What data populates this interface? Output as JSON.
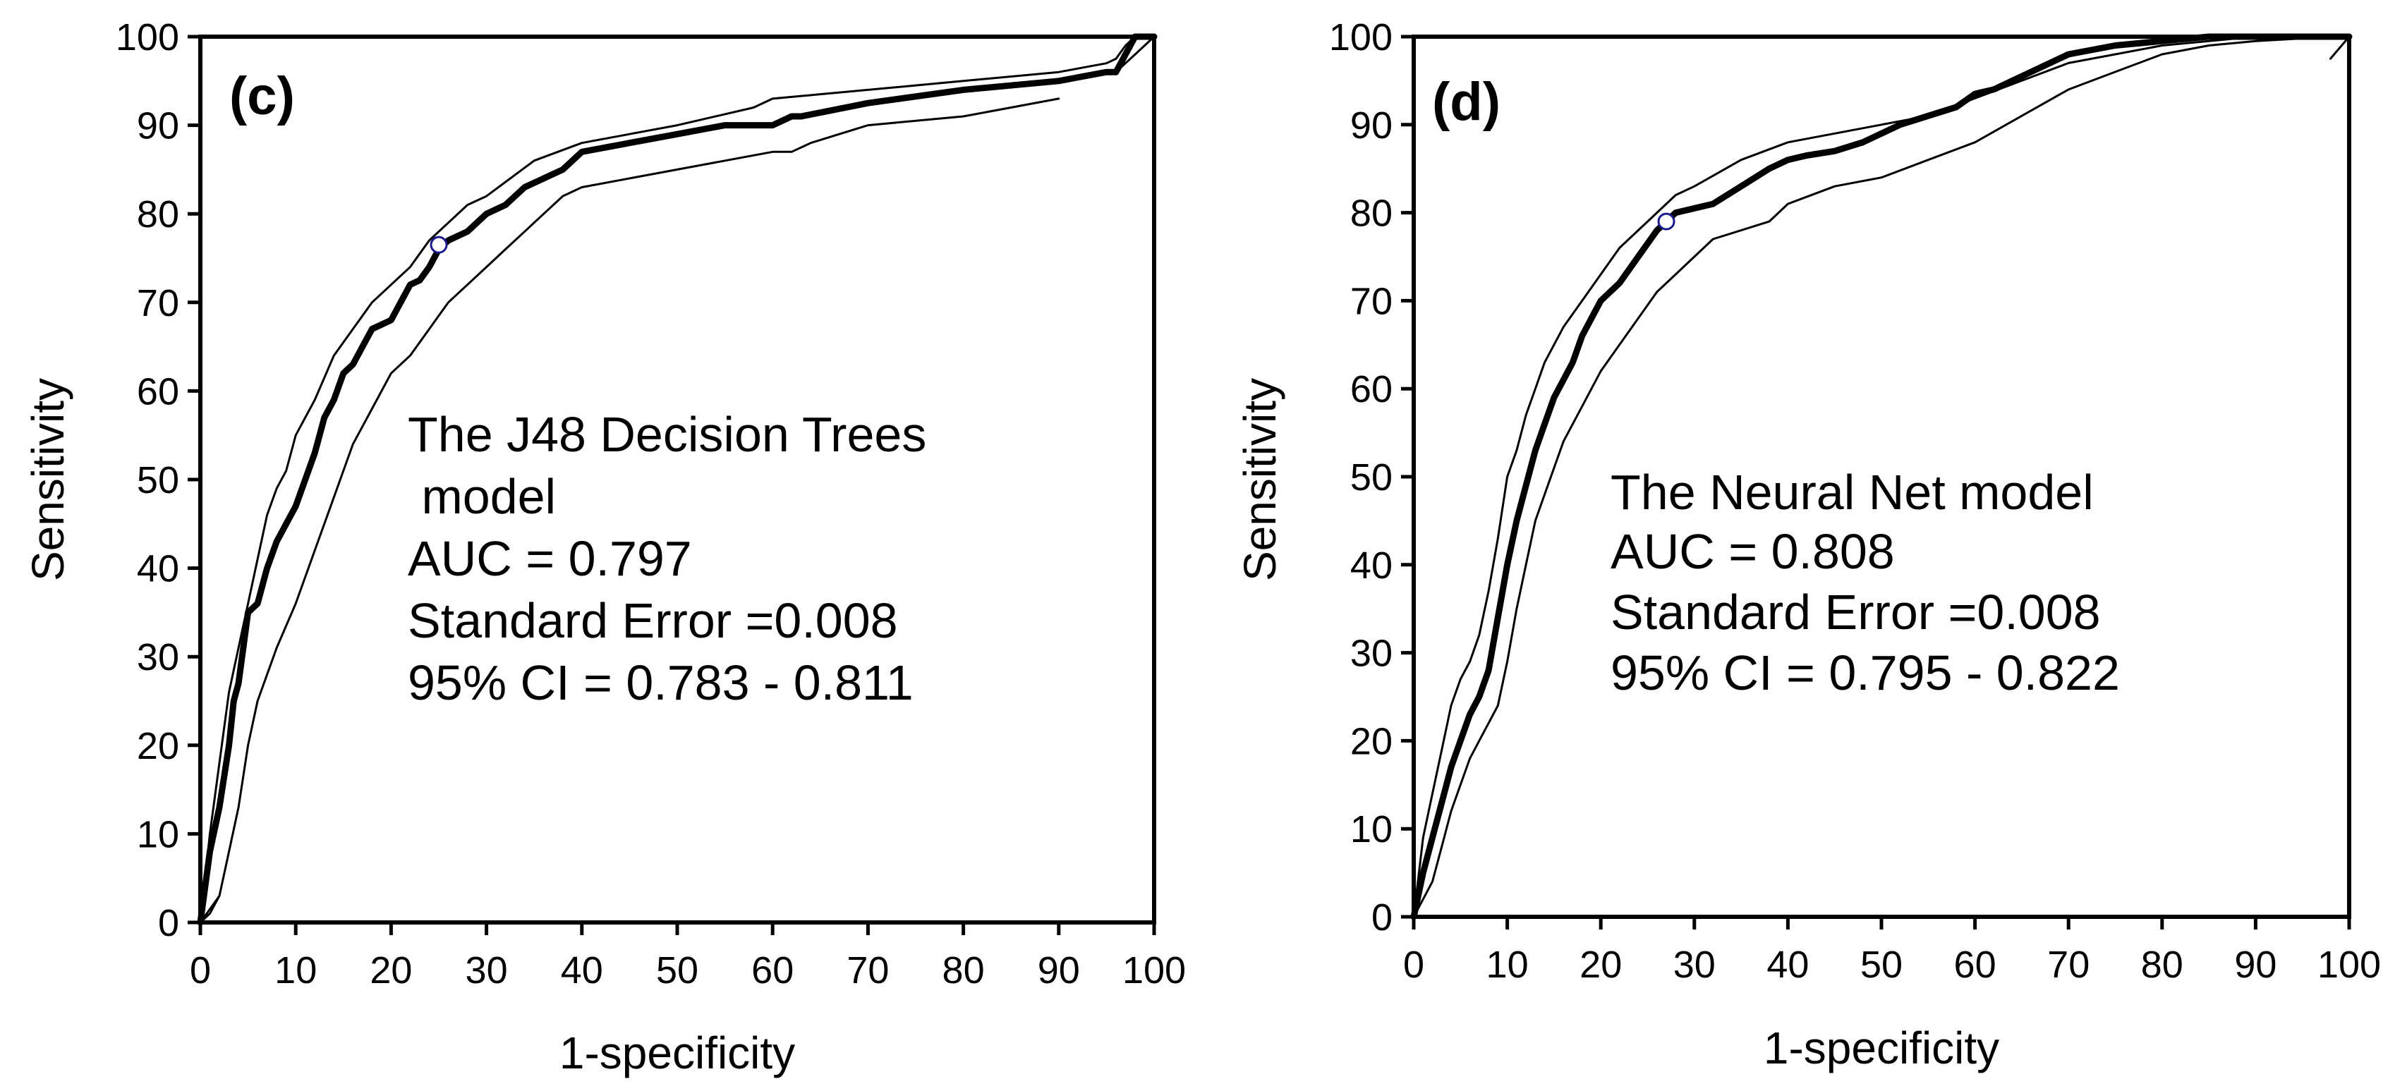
{
  "chart_data": [
    {
      "type": "line",
      "panel_label": "(c)",
      "xlabel": "1-specificity",
      "ylabel": "Sensitivity",
      "xlim": [
        0,
        100
      ],
      "ylim": [
        0,
        100
      ],
      "xticks": [
        "0",
        "10",
        "20",
        "30",
        "40",
        "50",
        "60",
        "70",
        "80",
        "90",
        "100"
      ],
      "yticks": [
        "0",
        "10",
        "20",
        "30",
        "40",
        "50",
        "60",
        "70",
        "80",
        "90",
        "100"
      ],
      "annotation": [
        "The J48 Decision Trees",
        " model",
        "AUC = 0.797",
        "Standard Error =0.008",
        "95% CI = 0.783 - 0.811"
      ],
      "marker": {
        "x": 25,
        "y": 76.5
      },
      "series": [
        {
          "name": "ROC curve",
          "x": [
            0,
            1,
            2,
            3,
            3.5,
            4,
            5,
            6,
            7,
            8,
            9,
            10,
            11,
            12,
            13,
            14,
            15,
            16,
            17,
            18,
            20,
            21,
            22,
            23,
            24,
            25,
            26,
            28,
            30,
            32,
            34,
            36,
            38,
            40,
            45,
            50,
            55,
            60,
            62,
            63,
            70,
            80,
            90,
            95,
            96,
            96.5,
            97,
            97.5,
            98,
            99,
            100
          ],
          "y": [
            0,
            8,
            13,
            20,
            25,
            27,
            35,
            36,
            40,
            43,
            45,
            47,
            50,
            53,
            57,
            59,
            62,
            63,
            65,
            67,
            68,
            70,
            72,
            72.5,
            74,
            76,
            77,
            78,
            80,
            81,
            83,
            84,
            85,
            87,
            88,
            89,
            90,
            90,
            91,
            91,
            92.5,
            94,
            95,
            96,
            96,
            97,
            98,
            99,
            100,
            100,
            100
          ]
        },
        {
          "name": "Upper 95% CI",
          "x": [
            0,
            1,
            2,
            3,
            4,
            5,
            6,
            7,
            8,
            9,
            10,
            12,
            14,
            16,
            18,
            20,
            22,
            24,
            26,
            28,
            30,
            35,
            40,
            50,
            58,
            60,
            65,
            70,
            80,
            90,
            95,
            96,
            97,
            98,
            100
          ],
          "y": [
            0,
            10,
            18,
            26,
            31,
            36,
            41,
            46,
            49,
            51,
            55,
            59,
            64,
            67,
            70,
            72,
            74,
            77,
            79,
            81,
            82,
            86,
            88,
            90,
            92,
            93,
            93.5,
            94,
            95,
            96,
            97,
            97.5,
            99,
            100,
            100
          ]
        },
        {
          "name": "Lower 95% CI",
          "x": [
            0,
            1,
            2,
            3,
            4,
            5,
            6,
            8,
            10,
            12,
            14,
            16,
            18,
            20,
            22,
            24,
            26,
            28,
            30,
            32,
            34,
            36,
            38,
            40,
            50,
            60,
            62,
            64,
            70,
            80,
            90
          ],
          "y": [
            0,
            1,
            3,
            8,
            13,
            20,
            25,
            31,
            36,
            42,
            48,
            54,
            58,
            62,
            64,
            67,
            70,
            72,
            74,
            76,
            78,
            80,
            82,
            83,
            85,
            87,
            87,
            88,
            90,
            91,
            93
          ]
        },
        {
          "name": "Lower 95% CI (upper segment)",
          "x": [
            96,
            97,
            98,
            99,
            100
          ],
          "y": [
            96,
            97,
            98,
            99,
            100
          ]
        },
        {
          "name": "Reference",
          "x": [
            0,
            2
          ],
          "y": [
            0,
            3
          ]
        }
      ]
    },
    {
      "type": "line",
      "panel_label": "(d)",
      "xlabel": "1-specificity",
      "ylabel": "Sensitivity",
      "xlim": [
        0,
        100
      ],
      "ylim": [
        0,
        100
      ],
      "xticks": [
        "0",
        "10",
        "20",
        "30",
        "40",
        "50",
        "60",
        "70",
        "80",
        "90",
        "100"
      ],
      "yticks": [
        "0",
        "10",
        "20",
        "30",
        "40",
        "50",
        "60",
        "70",
        "80",
        "90",
        "100"
      ],
      "annotation": [
        "The Neural Net model",
        "AUC = 0.808",
        "Standard Error =0.008",
        "95% CI = 0.795 - 0.822"
      ],
      "marker": {
        "x": 27,
        "y": 79
      },
      "series": [
        {
          "name": "ROC curve",
          "x": [
            0,
            1,
            2,
            3,
            4,
            5,
            6,
            7,
            8,
            9,
            10,
            11,
            12,
            13,
            14,
            15,
            16,
            17,
            18,
            19,
            20,
            22,
            24,
            26,
            27,
            28,
            30,
            32,
            35,
            38,
            40,
            42,
            45,
            48,
            50,
            52,
            55,
            58,
            60,
            62,
            65,
            68,
            70,
            75,
            80,
            85,
            90,
            95,
            100
          ],
          "y": [
            0,
            5,
            9,
            13,
            17,
            20,
            23,
            25,
            28,
            34,
            40,
            45,
            49,
            53,
            56,
            59,
            61,
            63,
            66,
            68,
            70,
            72,
            75,
            78,
            79,
            80,
            80.5,
            81,
            83,
            85,
            86,
            86.5,
            87,
            88,
            89,
            90,
            91,
            92,
            93.5,
            94,
            95.5,
            97,
            98,
            99,
            99.5,
            100,
            100,
            100,
            100
          ]
        },
        {
          "name": "Upper 95% CI",
          "x": [
            0,
            1,
            2,
            3,
            4,
            5,
            6,
            7,
            8,
            9,
            10,
            11,
            12,
            13,
            14,
            15,
            16,
            18,
            20,
            22,
            24,
            26,
            28,
            30,
            35,
            40,
            45,
            50,
            55,
            60,
            65,
            70,
            75,
            80,
            90,
            100
          ],
          "y": [
            0,
            9,
            14,
            19,
            24,
            27,
            29,
            32,
            37,
            43,
            50,
            53,
            57,
            60,
            63,
            65,
            67,
            70,
            73,
            76,
            78,
            80,
            82,
            83,
            86,
            88,
            89,
            90,
            91,
            93,
            95,
            97,
            98,
            99,
            100,
            100
          ]
        },
        {
          "name": "Lower 95% CI",
          "x": [
            0,
            1,
            2,
            3,
            4,
            5,
            6,
            7,
            8,
            9,
            10,
            11,
            12,
            13,
            14,
            15,
            16,
            18,
            20,
            22,
            24,
            26,
            28,
            30,
            32,
            35,
            38,
            40,
            45,
            50,
            55,
            60,
            65,
            70,
            75,
            80,
            85,
            90,
            95,
            100
          ],
          "y": [
            0,
            2,
            4,
            8,
            12,
            15,
            18,
            20,
            22,
            24,
            29,
            35,
            40,
            45,
            48,
            51,
            54,
            58,
            62,
            65,
            68,
            71,
            73,
            75,
            77,
            78,
            79,
            81,
            83,
            84,
            86,
            88,
            91,
            94,
            96,
            98,
            99,
            99.5,
            99.8,
            100
          ]
        },
        {
          "name": "Reference",
          "x": [
            98,
            100
          ],
          "y": [
            97.5,
            100
          ]
        }
      ]
    }
  ]
}
